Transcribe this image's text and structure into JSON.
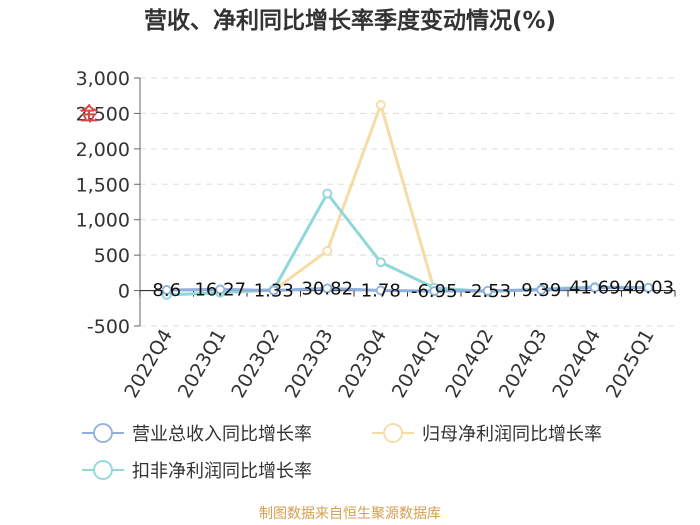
{
  "chart_data": {
    "type": "line",
    "title": "营收、净利同比增长率季度变动情况(%)",
    "categories": [
      "2022Q4",
      "2023Q1",
      "2023Q2",
      "2023Q3",
      "2023Q4",
      "2024Q1",
      "2024Q2",
      "2024Q3",
      "2024Q4",
      "2025Q1"
    ],
    "series": [
      {
        "name": "营业总收入同比增长率",
        "color": "#8fb0dc",
        "values": [
          8.6,
          16.27,
          1.33,
          30.82,
          1.78,
          -6.95,
          -2.53,
          9.39,
          41.69,
          40.03
        ],
        "data_labels": [
          "8.6",
          "16.27",
          "1.33",
          "30.82",
          "1.78",
          "-6.95",
          "-2.53",
          "9.39",
          "41.69",
          "40.03"
        ]
      },
      {
        "name": "归母净利润同比增长率",
        "color": "#f6dca4",
        "values": [
          -60,
          -30,
          5,
          560,
          2620,
          10,
          -20,
          20,
          50,
          40
        ]
      },
      {
        "name": "扣非净利润同比增长率",
        "color": "#8ed8da",
        "values": [
          -60,
          -30,
          15,
          1370,
          400,
          40,
          -15,
          20,
          50,
          40
        ]
      }
    ],
    "y_ticks": [
      "3,000",
      "2,500",
      "2,000",
      "1,500",
      "1,000",
      "500",
      "0",
      "-500"
    ],
    "y_tick_values": [
      3000,
      2500,
      2000,
      1500,
      1000,
      500,
      0,
      -500
    ],
    "ylim": [
      -500,
      3000
    ],
    "grid": true,
    "legend_position": "bottom",
    "source": "制图数据来自恒生聚源数据库",
    "logo_text": "金"
  }
}
